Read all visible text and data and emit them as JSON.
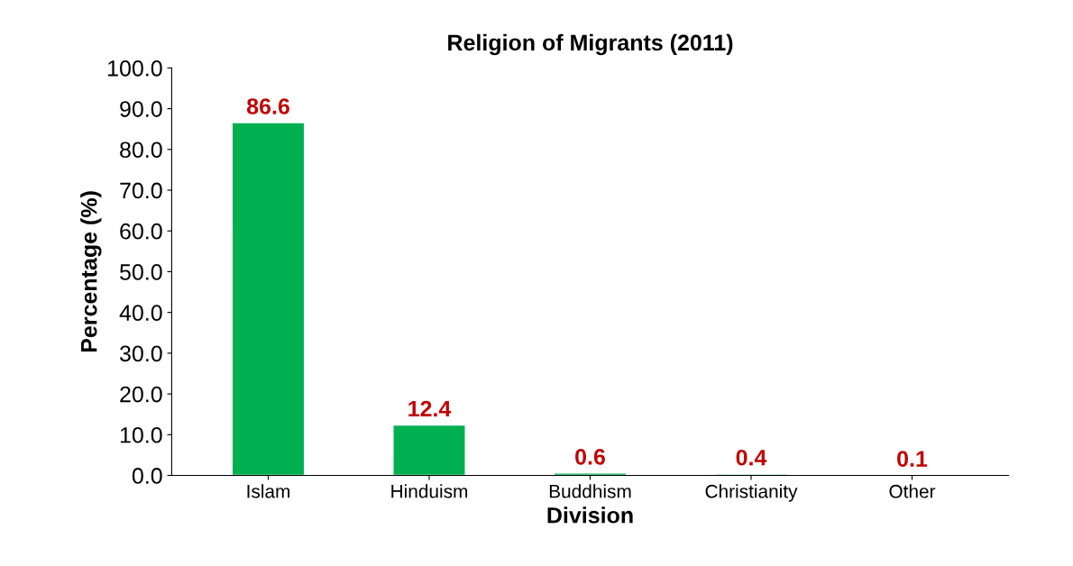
{
  "chart_data": {
    "type": "bar",
    "title": "Religion of Migrants (2011)",
    "xlabel": "Division",
    "ylabel": "Percentage (%)",
    "categories": [
      "Islam",
      "Hinduism",
      "Buddhism",
      "Christianity",
      "Other"
    ],
    "values": [
      86.6,
      12.4,
      0.6,
      0.4,
      0.1
    ],
    "color": "#00b050",
    "ylim": [
      0,
      100
    ],
    "yticks": [
      {
        "value": 0,
        "label": "0.0"
      },
      {
        "value": 10,
        "label": "10.0"
      },
      {
        "value": 20,
        "label": "20.0"
      },
      {
        "value": 30,
        "label": "30.0"
      },
      {
        "value": 40,
        "label": "40.0"
      },
      {
        "value": 50,
        "label": "50.0"
      },
      {
        "value": 60,
        "label": "60.0"
      },
      {
        "value": 70,
        "label": "70.0"
      },
      {
        "value": 80,
        "label": "80.0"
      },
      {
        "value": 90,
        "label": "90.0"
      },
      {
        "value": 100,
        "label": "100.0"
      }
    ],
    "data_labels": true,
    "grid": false
  }
}
